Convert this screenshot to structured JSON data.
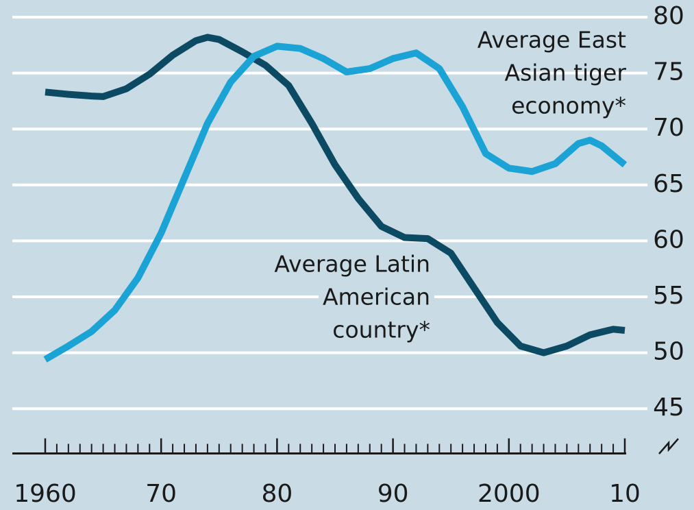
{
  "chart_data": {
    "type": "line",
    "background": "#c9dbe5",
    "grid": true,
    "xlim": [
      1960,
      2010
    ],
    "ylim": [
      41,
      80
    ],
    "yticks": [
      45,
      50,
      55,
      60,
      65,
      70,
      75,
      80
    ],
    "xticks": [
      1960,
      {
        "value": 1970,
        "label": "70"
      },
      {
        "value": 1980,
        "label": "80"
      },
      {
        "value": 1990,
        "label": "90"
      },
      2000,
      {
        "value": 2010,
        "label": "10"
      }
    ],
    "xminor_ticks": [
      1960,
      1961,
      1962,
      1963,
      1964,
      1965,
      1966,
      1967,
      1968,
      1969,
      1970,
      1971,
      1972,
      1973,
      1974,
      1975,
      1976,
      1977,
      1978,
      1979,
      1980,
      1981,
      1982,
      1983,
      1984,
      1985,
      1986,
      1987,
      1988,
      1989,
      1990,
      1991,
      1992,
      1993,
      1994,
      1995,
      1996,
      1997,
      1998,
      1999,
      2000,
      2001,
      2002,
      2003,
      2004,
      2005,
      2006,
      2007,
      2008,
      2009,
      2010
    ],
    "series": [
      {
        "name": "Average Latin American country*",
        "color": "#0c4a63",
        "x": [
          1960,
          1962,
          1964,
          1965,
          1967,
          1969,
          1971,
          1973,
          1974,
          1975,
          1977,
          1979,
          1981,
          1983,
          1985,
          1987,
          1989,
          1991,
          1993,
          1995,
          1997,
          1999,
          2001,
          2003,
          2005,
          2007,
          2009,
          2010
        ],
        "values": [
          73.3,
          73.1,
          72.95,
          72.9,
          73.6,
          74.9,
          76.6,
          77.9,
          78.2,
          78.0,
          76.9,
          75.7,
          73.9,
          70.5,
          66.8,
          63.8,
          61.3,
          60.3,
          60.2,
          58.9,
          55.8,
          52.7,
          50.6,
          50.0,
          50.6,
          51.6,
          52.1,
          52.0
        ]
      },
      {
        "name": "Average East Asian tiger economy*",
        "color": "#1aa3d4",
        "x": [
          1960,
          1962,
          1964,
          1966,
          1968,
          1970,
          1972,
          1974,
          1976,
          1978,
          1980,
          1982,
          1984,
          1986,
          1988,
          1990,
          1992,
          1994,
          1996,
          1998,
          2000,
          2002,
          2004,
          2006,
          2007,
          2008,
          2010
        ],
        "values": [
          49.4,
          50.6,
          51.9,
          53.8,
          56.7,
          60.7,
          65.6,
          70.5,
          74.2,
          76.5,
          77.4,
          77.2,
          76.3,
          75.1,
          75.4,
          76.3,
          76.8,
          75.4,
          72.0,
          67.8,
          66.5,
          66.2,
          66.9,
          68.7,
          69.0,
          68.5,
          66.8
        ]
      }
    ],
    "annotations": [
      {
        "lines": [
          "Average East",
          "Asian tiger",
          "economy*"
        ]
      },
      {
        "lines": [
          "Average Latin",
          "American",
          "country*"
        ]
      }
    ]
  }
}
